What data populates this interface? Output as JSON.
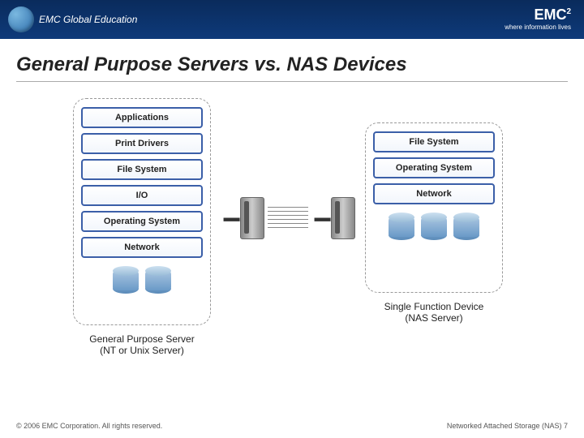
{
  "header": {
    "logo_text": "EMC Global Education",
    "brand": "EMC",
    "brand_sup": "2",
    "tagline": "where information lives"
  },
  "title": "General Purpose Servers vs. NAS Devices",
  "left_stack": {
    "layers": [
      "Applications",
      "Print Drivers",
      "File System",
      "I/O",
      "Operating System",
      "Network"
    ],
    "label_line1": "General Purpose Server",
    "label_line2": "(NT or Unix Server)"
  },
  "right_stack": {
    "layers": [
      "File System",
      "Operating System",
      "Network"
    ],
    "label_line1": "Single Function Device",
    "label_line2": "(NAS Server)"
  },
  "footer": {
    "copyright": "© 2006 EMC Corporation. All rights reserved.",
    "page_ref": "Networked Attached Storage (NAS) 7"
  },
  "colors": {
    "header_bg": "#0e3a7a",
    "layer_border": "#3b5fa8",
    "dashed_border": "#999999",
    "disk_fill": "#8ab4d8"
  }
}
